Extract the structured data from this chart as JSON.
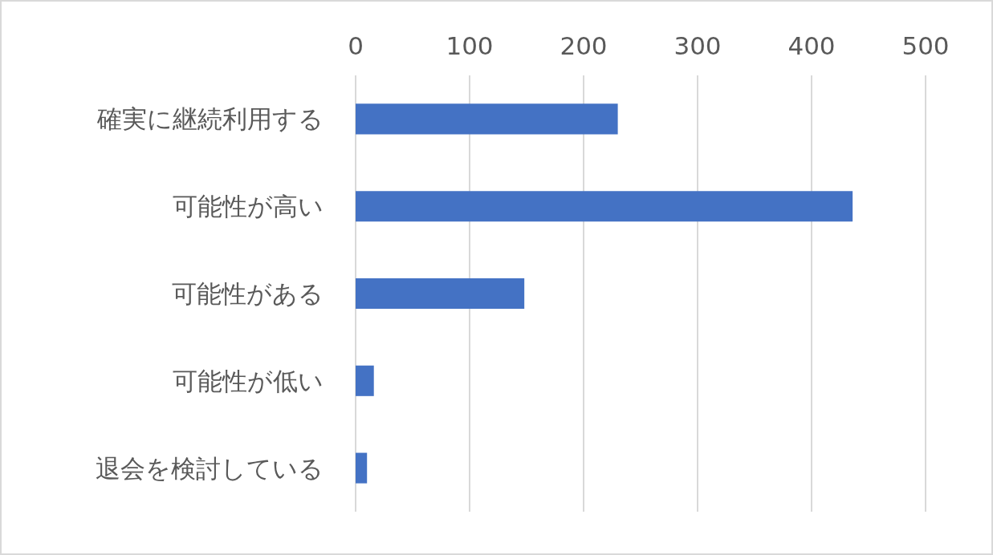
{
  "chart_data": {
    "type": "bar",
    "orientation": "horizontal",
    "categories": [
      "確実に継続利用する",
      "可能性が高い",
      "可能性がある",
      "可能性が低い",
      "退会を検討している"
    ],
    "values": [
      230,
      436,
      148,
      16,
      10
    ],
    "color": "#4472c4",
    "xlim": [
      0,
      500
    ],
    "xticks": [
      0,
      100,
      200,
      300,
      400,
      500
    ],
    "grid": "x"
  }
}
